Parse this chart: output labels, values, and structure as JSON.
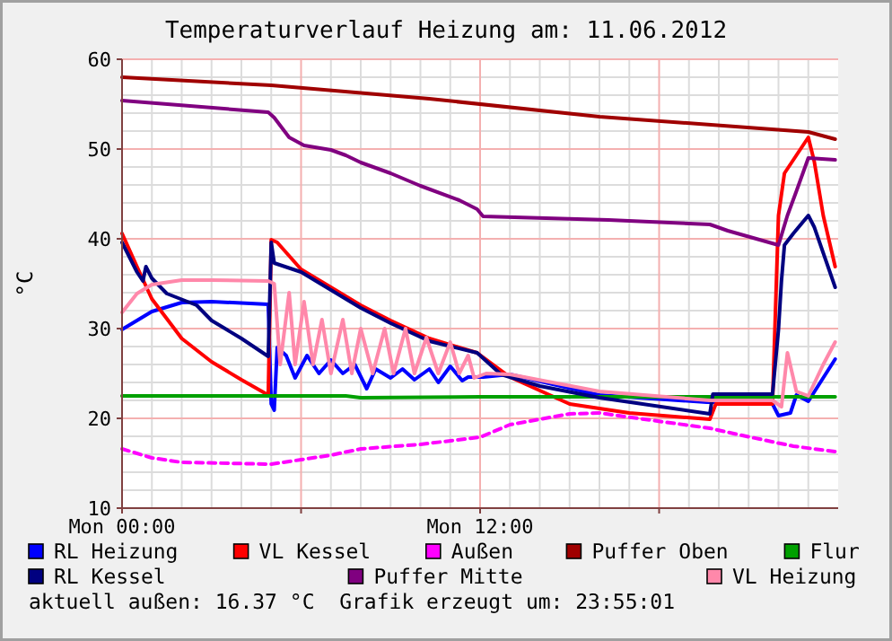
{
  "chart_data": {
    "type": "line",
    "title": "Temperaturverlauf Heizung am: 11.06.2012",
    "ylabel": "°C",
    "xlim": [
      "2012-06-11T00:00",
      "2012-06-12T00:00"
    ],
    "xticks": [
      {
        "value": "2012-06-11T00:00",
        "label": "Mon 00:00"
      },
      {
        "value": "2012-06-11T06:00",
        "label": null
      },
      {
        "value": "2012-06-11T12:00",
        "label": "Mon 12:00"
      },
      {
        "value": "2012-06-11T18:00",
        "label": null
      }
    ],
    "ylim": [
      10,
      60
    ],
    "yticks": [
      10,
      20,
      30,
      40,
      50,
      60
    ],
    "grid": true,
    "legend": "bottom",
    "marker": "none",
    "annotations": [
      "aktuell außen: 16.37 °C  Grafik erzeugt um: 23:55:01"
    ],
    "series": [
      {
        "name": "RL Heizung",
        "color": "#0000ff",
        "x": [
          "2012-06-11T00:00",
          "2012-06-11T01:00",
          "2012-06-11T02:00",
          "2012-06-11T03:00",
          "2012-06-11T04:54",
          "2012-06-11T05:00",
          "2012-06-11T05:06",
          "2012-06-11T05:12",
          "2012-06-11T05:30",
          "2012-06-11T05:48",
          "2012-06-11T06:12",
          "2012-06-11T06:36",
          "2012-06-11T07:00",
          "2012-06-11T07:24",
          "2012-06-11T07:48",
          "2012-06-11T08:12",
          "2012-06-11T08:30",
          "2012-06-11T09:00",
          "2012-06-11T09:24",
          "2012-06-11T09:48",
          "2012-06-11T10:18",
          "2012-06-11T10:36",
          "2012-06-11T11:00",
          "2012-06-11T11:24",
          "2012-06-11T11:36",
          "2012-06-11T12:06",
          "2012-06-11T13:00",
          "2012-06-11T16:00",
          "2012-06-11T19:36",
          "2012-06-11T20:00",
          "2012-06-11T21:48",
          "2012-06-11T22:00",
          "2012-06-11T22:24",
          "2012-06-11T22:36",
          "2012-06-11T23:00",
          "2012-06-11T23:54"
        ],
        "values": [
          29.9,
          31.9,
          32.9,
          33,
          32.7,
          21.6,
          20.9,
          27.9,
          27,
          24.5,
          27,
          25,
          26.5,
          25,
          26,
          23.3,
          25.5,
          24.5,
          25.5,
          24.3,
          25.5,
          24,
          25.8,
          24.2,
          24.6,
          24.6,
          24.9,
          22.6,
          21.8,
          21.8,
          21.6,
          20.3,
          20.6,
          22.6,
          21.9,
          26.6
        ]
      },
      {
        "name": "VL Kessel",
        "color": "#ff0000",
        "x": [
          "2012-06-11T00:00",
          "2012-06-11T00:30",
          "2012-06-11T01:00",
          "2012-06-11T02:00",
          "2012-06-11T03:00",
          "2012-06-11T04:00",
          "2012-06-11T04:54",
          "2012-06-11T05:00",
          "2012-06-11T05:12",
          "2012-06-11T06:00",
          "2012-06-11T07:00",
          "2012-06-11T08:00",
          "2012-06-11T09:00",
          "2012-06-11T10:18",
          "2012-06-11T11:54",
          "2012-06-11T13:00",
          "2012-06-11T15:00",
          "2012-06-11T17:00",
          "2012-06-11T19:42",
          "2012-06-11T19:54",
          "2012-06-11T21:48",
          "2012-06-11T22:00",
          "2012-06-11T22:12",
          "2012-06-11T22:36",
          "2012-06-11T23:00",
          "2012-06-11T23:12",
          "2012-06-11T23:30",
          "2012-06-11T23:54"
        ],
        "values": [
          40.6,
          36.9,
          33.3,
          28.9,
          26.3,
          24.3,
          22.6,
          39.9,
          39.6,
          36.6,
          34.6,
          32.6,
          30.9,
          28.9,
          27.3,
          24.6,
          21.6,
          20.6,
          19.9,
          21.6,
          21.6,
          42.6,
          47.3,
          49.3,
          51.3,
          48.6,
          42.6,
          36.9
        ]
      },
      {
        "name": "Außen",
        "color": "#ff00ff",
        "line_style": "dashed",
        "x": [
          "2012-06-11T00:00",
          "2012-06-11T01:00",
          "2012-06-11T02:00",
          "2012-06-11T05:00",
          "2012-06-11T06:00",
          "2012-06-11T07:00",
          "2012-06-11T08:00",
          "2012-06-11T10:00",
          "2012-06-11T12:00",
          "2012-06-11T13:00",
          "2012-06-11T15:00",
          "2012-06-11T16:00",
          "2012-06-11T17:30",
          "2012-06-11T19:42",
          "2012-06-11T20:30",
          "2012-06-11T21:30",
          "2012-06-11T22:30",
          "2012-06-11T23:54"
        ],
        "values": [
          16.6,
          15.6,
          15.1,
          14.9,
          15.4,
          15.9,
          16.6,
          17.1,
          17.9,
          19.3,
          20.5,
          20.6,
          19.9,
          18.9,
          18.3,
          17.6,
          16.9,
          16.3
        ]
      },
      {
        "name": "Puffer Oben",
        "color": "#a00000",
        "x": [
          "2012-06-11T00:00",
          "2012-06-11T05:00",
          "2012-06-11T10:18",
          "2012-06-11T16:00",
          "2012-06-11T23:00",
          "2012-06-11T23:54"
        ],
        "values": [
          58,
          57.1,
          55.6,
          53.6,
          51.9,
          51.1
        ]
      },
      {
        "name": "Flur",
        "color": "#00a000",
        "x": [
          "2012-06-11T00:00",
          "2012-06-11T05:00",
          "2012-06-11T07:30",
          "2012-06-11T08:00",
          "2012-06-11T12:00",
          "2012-06-11T18:00",
          "2012-06-11T23:54"
        ],
        "values": [
          22.5,
          22.5,
          22.5,
          22.3,
          22.4,
          22.4,
          22.4
        ]
      },
      {
        "name": "RL Kessel",
        "color": "#000080",
        "x": [
          "2012-06-11T00:00",
          "2012-06-11T00:30",
          "2012-06-11T00:42",
          "2012-06-11T00:48",
          "2012-06-11T01:00",
          "2012-06-11T01:30",
          "2012-06-11T02:30",
          "2012-06-11T03:00",
          "2012-06-11T04:00",
          "2012-06-11T04:54",
          "2012-06-11T05:00",
          "2012-06-11T05:06",
          "2012-06-11T06:00",
          "2012-06-11T07:00",
          "2012-06-11T08:00",
          "2012-06-11T09:00",
          "2012-06-11T10:18",
          "2012-06-11T11:54",
          "2012-06-11T12:42",
          "2012-06-11T14:00",
          "2012-06-11T16:00",
          "2012-06-11T19:42",
          "2012-06-11T19:48",
          "2012-06-11T21:48",
          "2012-06-11T22:00",
          "2012-06-11T22:06",
          "2012-06-11T22:12",
          "2012-06-11T22:30",
          "2012-06-11T23:00",
          "2012-06-11T23:12",
          "2012-06-11T23:54"
        ],
        "values": [
          39.6,
          36.3,
          35.3,
          36.9,
          35.6,
          33.9,
          32.6,
          30.9,
          28.9,
          26.9,
          39.6,
          37.3,
          36.3,
          34.3,
          32.3,
          30.6,
          28.6,
          27.3,
          24.9,
          23.6,
          22.3,
          20.5,
          22.7,
          22.7,
          29.9,
          35.3,
          39.3,
          40.6,
          42.6,
          41.3,
          34.6
        ]
      },
      {
        "name": "Puffer Mitte",
        "color": "#800080",
        "x": [
          "2012-06-11T00:00",
          "2012-06-11T04:54",
          "2012-06-11T05:06",
          "2012-06-11T05:36",
          "2012-06-11T06:06",
          "2012-06-11T07:00",
          "2012-06-11T07:30",
          "2012-06-11T08:00",
          "2012-06-11T09:00",
          "2012-06-11T10:00",
          "2012-06-11T11:18",
          "2012-06-11T11:54",
          "2012-06-11T12:06",
          "2012-06-11T16:18",
          "2012-06-11T19:42",
          "2012-06-11T20:18",
          "2012-06-11T22:00",
          "2012-06-11T22:18",
          "2012-06-11T22:36",
          "2012-06-11T23:00",
          "2012-06-11T23:54"
        ],
        "values": [
          55.4,
          54.1,
          53.5,
          51.3,
          50.4,
          49.9,
          49.3,
          48.5,
          47.3,
          45.9,
          44.3,
          43.3,
          42.5,
          42.1,
          41.6,
          40.9,
          39.3,
          42.6,
          45.3,
          49,
          48.8
        ]
      },
      {
        "name": "VL Heizung",
        "color": "#ff88aa",
        "x": [
          "2012-06-11T00:00",
          "2012-06-11T00:30",
          "2012-06-11T01:00",
          "2012-06-11T02:00",
          "2012-06-11T03:00",
          "2012-06-11T04:54",
          "2012-06-11T05:06",
          "2012-06-11T05:18",
          "2012-06-11T05:36",
          "2012-06-11T05:48",
          "2012-06-11T06:06",
          "2012-06-11T06:24",
          "2012-06-11T06:42",
          "2012-06-11T07:00",
          "2012-06-11T07:24",
          "2012-06-11T07:42",
          "2012-06-11T08:00",
          "2012-06-11T08:24",
          "2012-06-11T08:48",
          "2012-06-11T09:06",
          "2012-06-11T09:30",
          "2012-06-11T09:48",
          "2012-06-11T10:12",
          "2012-06-11T10:36",
          "2012-06-11T11:00",
          "2012-06-11T11:18",
          "2012-06-11T11:36",
          "2012-06-11T11:48",
          "2012-06-11T12:12",
          "2012-06-11T13:00",
          "2012-06-11T16:00",
          "2012-06-11T19:42",
          "2012-06-11T21:48",
          "2012-06-11T22:06",
          "2012-06-11T22:18",
          "2012-06-11T22:36",
          "2012-06-11T23:00",
          "2012-06-11T23:30",
          "2012-06-11T23:54"
        ],
        "values": [
          31.8,
          33.9,
          34.9,
          35.4,
          35.4,
          35.3,
          35,
          26,
          34,
          26,
          33,
          26,
          31,
          25,
          31,
          25,
          30,
          25,
          30,
          25,
          30,
          25,
          29,
          25,
          28.5,
          25,
          27,
          24.5,
          25,
          24.9,
          23,
          22,
          22,
          21.3,
          27.3,
          23,
          22.5,
          26,
          28.5
        ]
      }
    ]
  }
}
